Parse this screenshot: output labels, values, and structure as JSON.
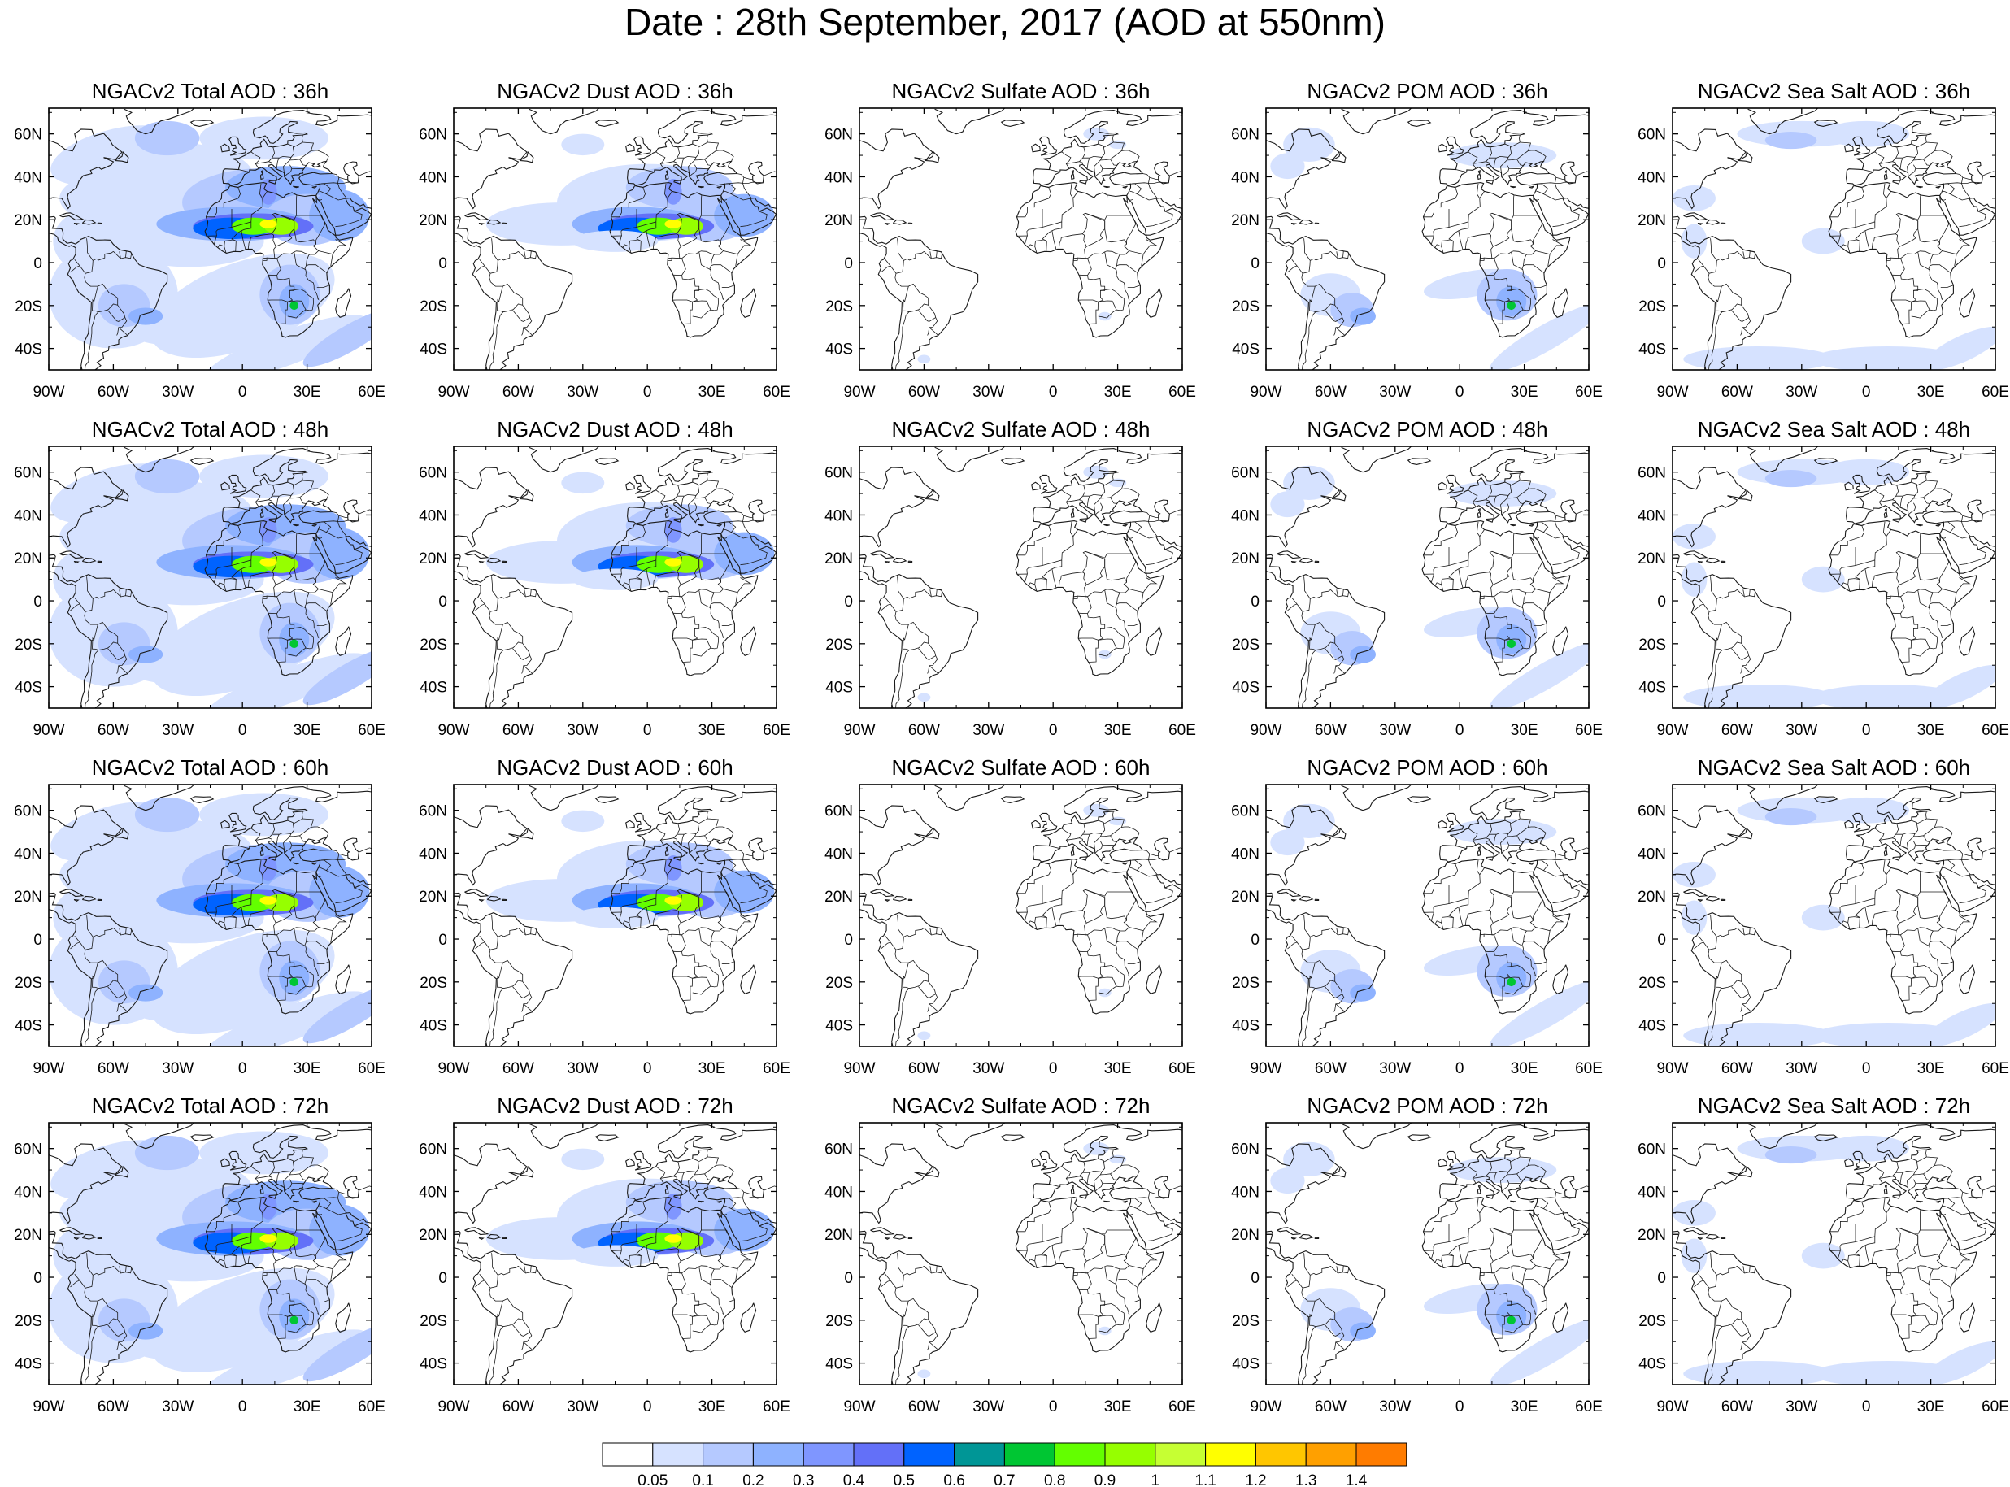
{
  "title": "Date : 28th September, 2017 (AOD at 550nm)",
  "lat_labels": [
    "60N",
    "40N",
    "20N",
    "0",
    "20S",
    "40S"
  ],
  "lon_labels": [
    "90W",
    "60W",
    "30W",
    "0",
    "30E",
    "60E"
  ],
  "rows": [
    {
      "hour": "36h",
      "panels": [
        {
          "title": "NGACv2 Total AOD : 36h",
          "type": "total"
        },
        {
          "title": "NGACv2 Dust AOD : 36h",
          "type": "dust"
        },
        {
          "title": "NGACv2 Sulfate AOD : 36h",
          "type": "sulfate"
        },
        {
          "title": "NGACv2 POM AOD : 36h",
          "type": "pom"
        },
        {
          "title": "NGACv2 Sea Salt AOD : 36h",
          "type": "seasalt"
        }
      ]
    },
    {
      "hour": "48h",
      "panels": [
        {
          "title": "NGACv2 Total AOD : 48h",
          "type": "total"
        },
        {
          "title": "NGACv2 Dust AOD : 48h",
          "type": "dust"
        },
        {
          "title": "NGACv2 Sulfate AOD : 48h",
          "type": "sulfate"
        },
        {
          "title": "NGACv2 POM AOD : 48h",
          "type": "pom"
        },
        {
          "title": "NGACv2 Sea Salt AOD : 48h",
          "type": "seasalt"
        }
      ]
    },
    {
      "hour": "60h",
      "panels": [
        {
          "title": "NGACv2 Total AOD : 60h",
          "type": "total"
        },
        {
          "title": "NGACv2 Dust AOD : 60h",
          "type": "dust"
        },
        {
          "title": "NGACv2 Sulfate AOD : 60h",
          "type": "sulfate"
        },
        {
          "title": "NGACv2 POM AOD : 60h",
          "type": "pom"
        },
        {
          "title": "NGACv2 Sea Salt AOD : 60h",
          "type": "seasalt"
        }
      ]
    },
    {
      "hour": "72h",
      "panels": [
        {
          "title": "NGACv2 Total AOD : 72h",
          "type": "total"
        },
        {
          "title": "NGACv2 Dust AOD : 72h",
          "type": "dust"
        },
        {
          "title": "NGACv2 Sulfate AOD : 72h",
          "type": "sulfate"
        },
        {
          "title": "NGACv2 POM AOD : 72h",
          "type": "pom"
        },
        {
          "title": "NGACv2 Sea Salt  AOD : 72h",
          "type": "seasalt"
        }
      ]
    }
  ],
  "colorbar": {
    "labels": [
      "0.05",
      "0.1",
      "0.2",
      "0.3",
      "0.4",
      "0.5",
      "0.6",
      "0.7",
      "0.8",
      "0.9",
      "1",
      "1.1",
      "1.2",
      "1.3",
      "1.4"
    ],
    "colors": [
      "#ffffff",
      "#d6e2ff",
      "#b5c9ff",
      "#8eb2ff",
      "#7f96ff",
      "#6370f8",
      "#0063ff",
      "#009696",
      "#00c633",
      "#63ff00",
      "#96ff00",
      "#c6ff33",
      "#ffff00",
      "#ffc600",
      "#ffa000",
      "#ff7c00",
      "#ff1900"
    ]
  }
}
